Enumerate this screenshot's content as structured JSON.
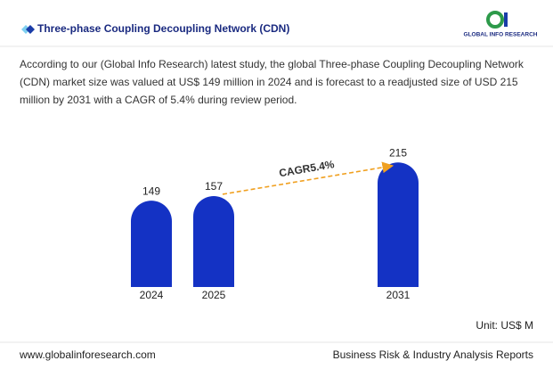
{
  "header": {
    "title": "Three-phase Coupling Decoupling Network (CDN)",
    "logo": "GLOBAL INFO RESEARCH"
  },
  "description": "According to our (Global Info Research) latest study, the global Three-phase Coupling Decoupling Network (CDN) market size was valued at US$ 149 million in 2024 and is forecast to a readjusted size of USD 215 million by 2031 with a CAGR of 5.4% during review period.",
  "chart_data": {
    "type": "bar",
    "categories": [
      "2024",
      "2025",
      "2031"
    ],
    "values": [
      149,
      157,
      215
    ],
    "color": "#1432c4",
    "annotation": "CAGR5.4%",
    "unit_label": "Unit: US$ M"
  },
  "footer": {
    "website": "www.globalinforesearch.com",
    "tagline": "Business Risk & Industry Analysis Reports"
  }
}
